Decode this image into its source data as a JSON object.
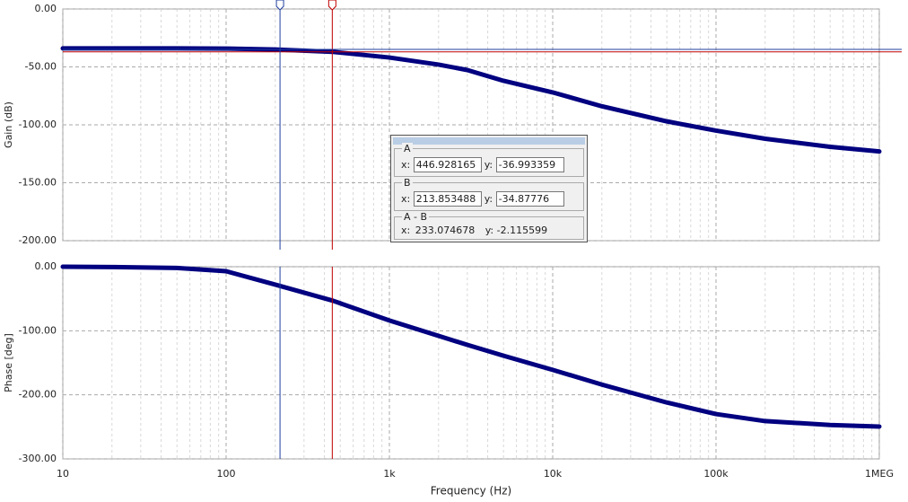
{
  "chart_data": [
    {
      "type": "line",
      "ylabel": "Gain (dB)",
      "log_x": true,
      "grid": true,
      "xlim": [
        10,
        1000000
      ],
      "xticks": [
        10,
        100,
        1000,
        10000,
        100000,
        1000000
      ],
      "ylim": [
        -200,
        0
      ],
      "yticks": [
        {
          "value": 0,
          "label": "0.00"
        },
        {
          "value": -50,
          "label": "-50.00"
        },
        {
          "value": -100,
          "label": "-100.00"
        },
        {
          "value": -150,
          "label": "-150.00"
        },
        {
          "value": -200,
          "label": "-200.00"
        }
      ],
      "series": [
        {
          "color": "#000080",
          "x": [
            10,
            20,
            50,
            100,
            200,
            450,
            1000,
            2000,
            3000,
            5000,
            10000,
            20000,
            50000,
            100000,
            200000,
            500000,
            1000000
          ],
          "values": [
            -34,
            -34,
            -34,
            -34.2,
            -35,
            -37,
            -41.9,
            -48,
            -52.7,
            -62,
            -72,
            -84,
            -97,
            -105,
            -112,
            -119,
            -123
          ]
        }
      ],
      "cursors": [
        {
          "name": "A",
          "x": 446.928165,
          "y": -36.993359,
          "color": "#c00000"
        },
        {
          "name": "B",
          "x": 213.853488,
          "y": -34.87776,
          "color": "#1f3f9f"
        }
      ],
      "cursor_delta": {
        "name": "A - B",
        "x": 233.074678,
        "y": -2.115599
      },
      "x_prefix": "x:",
      "y_prefix": "y:"
    },
    {
      "type": "line",
      "ylabel": "Phase [deg]",
      "xlabel": "Frequency (Hz)",
      "log_x": true,
      "grid": true,
      "xlim": [
        10,
        1000000
      ],
      "xticks": [
        10,
        100,
        {
          "value": 1000,
          "label": "1k"
        },
        {
          "value": 10000,
          "label": "10k"
        },
        {
          "value": 100000,
          "label": "100k"
        },
        {
          "value": 1000000,
          "label": "1MEG"
        }
      ],
      "ylim": [
        -300,
        0
      ],
      "yticks": [
        {
          "value": 0,
          "label": "0.00"
        },
        {
          "value": -100,
          "label": "-100.00"
        },
        {
          "value": -200,
          "label": "-200.00"
        },
        {
          "value": -300,
          "label": "-300.00"
        }
      ],
      "series": [
        {
          "color": "#000080",
          "x": [
            10,
            20,
            50,
            100,
            200,
            450,
            1000,
            2000,
            3000,
            5000,
            10000,
            20000,
            50000,
            100000,
            200000,
            500000,
            1000000
          ],
          "values": [
            0,
            -0.5,
            -2,
            -7,
            -28,
            -53,
            -84,
            -108,
            -122,
            -139,
            -161,
            -184,
            -212,
            -230,
            -241,
            -247,
            -249.5
          ]
        }
      ]
    }
  ]
}
